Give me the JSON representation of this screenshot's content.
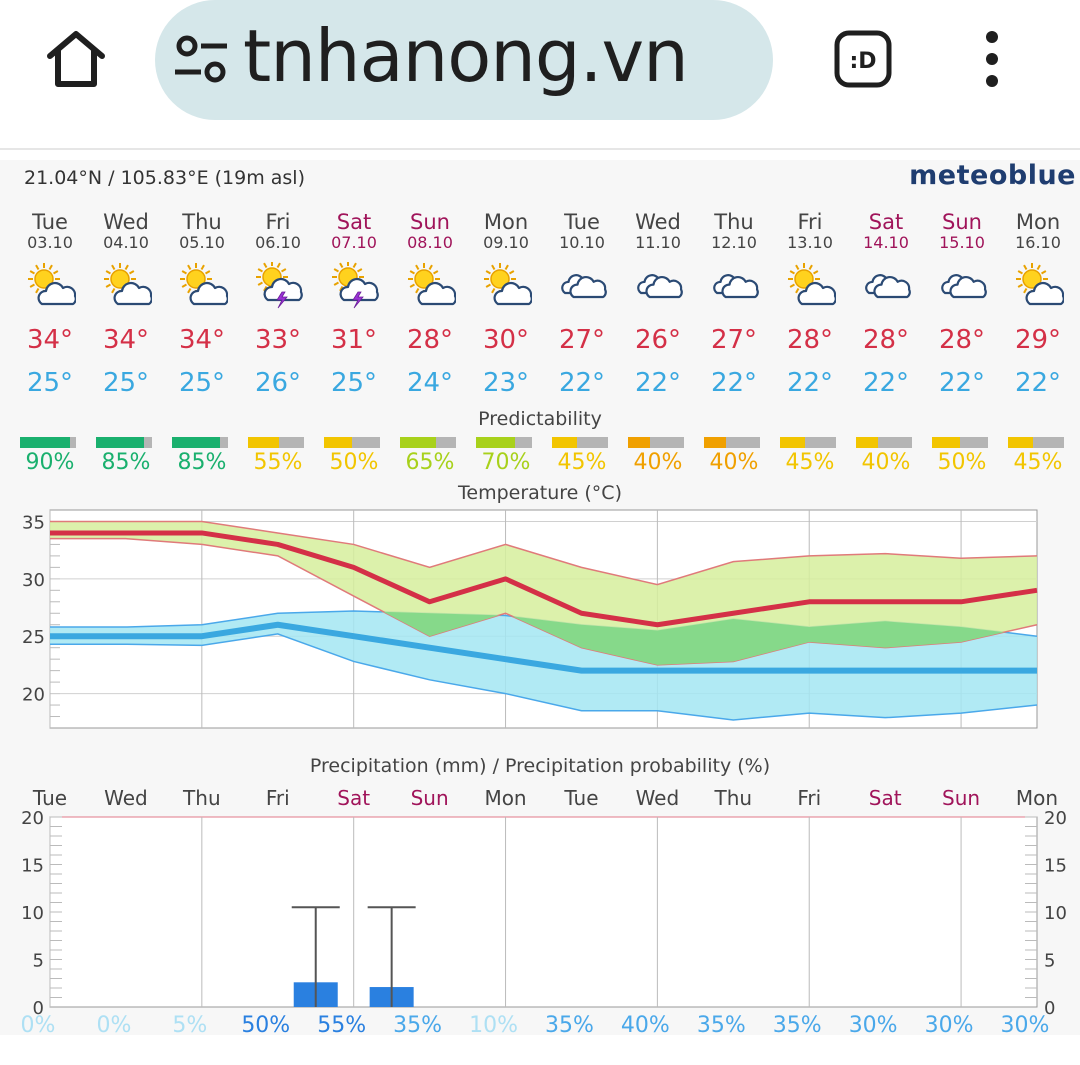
{
  "browser": {
    "url": "tnhanong.vn",
    "icons": [
      "home-icon",
      "site-settings-icon",
      "extension-icon",
      "more-vert-icon"
    ]
  },
  "header": {
    "coords": "21.04°N / 105.83°E (19m asl)",
    "brand": "meteoblue"
  },
  "days": [
    {
      "name": "Tue",
      "date": "03.10",
      "weekend": false,
      "icon": "sun-cloud-icon",
      "max": "34°",
      "min": "25°",
      "pred": "90%",
      "pred_value": 90,
      "pred_color": "#1ab06e",
      "precip_prob": "0%",
      "prob_color": "#aee0f4"
    },
    {
      "name": "Wed",
      "date": "04.10",
      "weekend": false,
      "icon": "sun-cloud-icon",
      "max": "34°",
      "min": "25°",
      "pred": "85%",
      "pred_value": 85,
      "pred_color": "#1ab06e",
      "precip_prob": "0%",
      "prob_color": "#aee0f4"
    },
    {
      "name": "Thu",
      "date": "05.10",
      "weekend": false,
      "icon": "sun-cloud-icon",
      "max": "34°",
      "min": "25°",
      "pred": "85%",
      "pred_value": 85,
      "pred_color": "#1ab06e",
      "precip_prob": "5%",
      "prob_color": "#aee0f4"
    },
    {
      "name": "Fri",
      "date": "06.10",
      "weekend": false,
      "icon": "thunderstorm-icon",
      "max": "33°",
      "min": "26°",
      "pred": "55%",
      "pred_value": 55,
      "pred_color": "#f2c500",
      "precip_prob": "50%",
      "prob_color": "#2a80e0"
    },
    {
      "name": "Sat",
      "date": "07.10",
      "weekend": true,
      "icon": "thunderstorm-icon",
      "max": "31°",
      "min": "25°",
      "pred": "50%",
      "pred_value": 50,
      "pred_color": "#f2c500",
      "precip_prob": "55%",
      "prob_color": "#2a80e0"
    },
    {
      "name": "Sun",
      "date": "08.10",
      "weekend": true,
      "icon": "sun-cloud-icon",
      "max": "28°",
      "min": "24°",
      "pred": "65%",
      "pred_value": 65,
      "pred_color": "#a8d11b",
      "precip_prob": "35%",
      "prob_color": "#4aa8ea"
    },
    {
      "name": "Mon",
      "date": "09.10",
      "weekend": false,
      "icon": "sun-cloud-icon",
      "max": "30°",
      "min": "23°",
      "pred": "70%",
      "pred_value": 70,
      "pred_color": "#a8d11b",
      "precip_prob": "10%",
      "prob_color": "#aee0f4"
    },
    {
      "name": "Tue",
      "date": "10.10",
      "weekend": false,
      "icon": "cloudy-icon",
      "max": "27°",
      "min": "22°",
      "pred": "45%",
      "pred_value": 45,
      "pred_color": "#f2c500",
      "precip_prob": "35%",
      "prob_color": "#4aa8ea"
    },
    {
      "name": "Wed",
      "date": "11.10",
      "weekend": false,
      "icon": "cloudy-icon",
      "max": "26°",
      "min": "22°",
      "pred": "40%",
      "pred_value": 40,
      "pred_color": "#f0a000",
      "precip_prob": "40%",
      "prob_color": "#4aa8ea"
    },
    {
      "name": "Thu",
      "date": "12.10",
      "weekend": false,
      "icon": "cloudy-icon",
      "max": "27°",
      "min": "22°",
      "pred": "40%",
      "pred_value": 40,
      "pred_color": "#f0a000",
      "precip_prob": "35%",
      "prob_color": "#4aa8ea"
    },
    {
      "name": "Fri",
      "date": "13.10",
      "weekend": false,
      "icon": "sun-cloud-icon",
      "max": "28°",
      "min": "22°",
      "pred": "45%",
      "pred_value": 45,
      "pred_color": "#f2c500",
      "precip_prob": "35%",
      "prob_color": "#4aa8ea"
    },
    {
      "name": "Sat",
      "date": "14.10",
      "weekend": true,
      "icon": "cloudy-icon",
      "max": "28°",
      "min": "22°",
      "pred": "40%",
      "pred_value": 40,
      "pred_color": "#f2c500",
      "precip_prob": "30%",
      "prob_color": "#4aa8ea"
    },
    {
      "name": "Sun",
      "date": "15.10",
      "weekend": true,
      "icon": "cloudy-icon",
      "max": "28°",
      "min": "22°",
      "pred": "50%",
      "pred_value": 50,
      "pred_color": "#f2c500",
      "precip_prob": "30%",
      "prob_color": "#4aa8ea"
    },
    {
      "name": "Mon",
      "date": "16.10",
      "weekend": false,
      "icon": "sun-cloud-icon",
      "max": "29°",
      "min": "22°",
      "pred": "45%",
      "pred_value": 45,
      "pred_color": "#f2c500",
      "precip_prob": "30%",
      "prob_color": "#4aa8ea"
    }
  ],
  "predictability_title": "Predictability",
  "chart_data": [
    {
      "type": "area",
      "title": "Temperature (°C)",
      "ylim": [
        17,
        36
      ],
      "yticks": [
        "35",
        "30",
        "25",
        "20"
      ],
      "categories": [
        "Tue",
        "Wed",
        "Thu",
        "Fri",
        "Sat",
        "Sun",
        "Mon",
        "Tue",
        "Wed",
        "Thu",
        "Fri",
        "Sat",
        "Sun",
        "Mon"
      ],
      "series": [
        {
          "role": "max",
          "color": "#d43047",
          "values": [
            34,
            34,
            34,
            33,
            31,
            28,
            30,
            27,
            26,
            27,
            28,
            28,
            28,
            29
          ]
        },
        {
          "role": "min",
          "color": "#3aa8e0",
          "values": [
            25,
            25,
            25,
            26,
            25,
            24,
            23,
            22,
            22,
            22,
            22,
            22,
            22,
            22
          ]
        },
        {
          "role": "max_range_high",
          "color": "#d6ee9c",
          "values": [
            35,
            35,
            35,
            34,
            33,
            31,
            33,
            31,
            29.5,
            31.5,
            32,
            32.2,
            31.8,
            32
          ]
        },
        {
          "role": "max_range_low",
          "color": "#d6ee9c",
          "values": [
            33.5,
            33.5,
            33,
            32,
            28.5,
            25,
            27,
            24,
            22.5,
            22.8,
            24.5,
            24,
            24.5,
            26
          ]
        },
        {
          "role": "min_range_high",
          "color": "#a3e6f2",
          "values": [
            25.8,
            25.8,
            26,
            27,
            27.2,
            27,
            26.8,
            26,
            25.5,
            26.5,
            25.8,
            26.3,
            25.8,
            25
          ]
        },
        {
          "role": "min_range_low",
          "color": "#a3e6f2",
          "values": [
            24.3,
            24.3,
            24.2,
            25.2,
            22.8,
            21.2,
            20,
            18.5,
            18.5,
            17.7,
            18.3,
            17.9,
            18.3,
            19
          ]
        }
      ],
      "grid": true
    },
    {
      "type": "bar",
      "title": "Precipitation (mm) / Precipitation probability (%)",
      "ylim": [
        0,
        20
      ],
      "yticks": [
        "20",
        "15",
        "10",
        "5",
        "0"
      ],
      "categories": [
        "Tue",
        "Wed",
        "Thu",
        "Fri",
        "Sat",
        "Sun",
        "Mon",
        "Tue",
        "Wed",
        "Thu",
        "Fri",
        "Sat",
        "Sun",
        "Mon"
      ],
      "series": [
        {
          "role": "precipitation_mm",
          "color": "#2a80e0",
          "values": [
            0,
            0,
            0,
            2.6,
            2.1,
            0,
            0,
            0,
            0,
            0,
            0,
            0,
            0,
            0
          ]
        },
        {
          "role": "precipitation_max_mm",
          "color": "#555555",
          "values": [
            0,
            0,
            0,
            10.5,
            10.5,
            0,
            0,
            0,
            0,
            0,
            0,
            0,
            0,
            0
          ]
        }
      ],
      "grid": true
    }
  ]
}
